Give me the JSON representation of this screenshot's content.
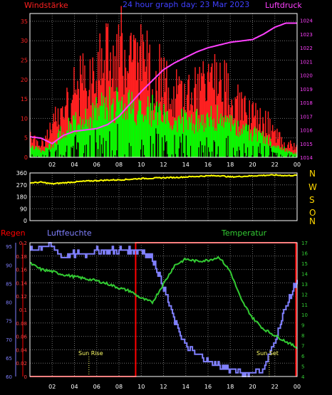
{
  "colors": {
    "background": "#000000",
    "axis": "#ffffff",
    "grid": "#6f6f6f",
    "wind_gust": "#ff2020",
    "wind_avg": "#00ff00",
    "wind_min": "#000000",
    "pressure": "#ff40ff",
    "wind_dir": "#ffff00",
    "humidity": "#8080ff",
    "temperature": "#33cc33",
    "rain": "#ff0000",
    "title": "#4040ff",
    "direction_letters": "#ffd700",
    "sun_labels": "#ffff66"
  },
  "header": {
    "left_label": "Windstärke",
    "center_title": "24 hour graph day: 23 Mar 2023",
    "right_label": "Luftdruck"
  },
  "panel3_labels": {
    "rain": "Regen",
    "humidity": "Luftfeuchte",
    "temperature": "Temperatur",
    "sunrise": "Sun Rise",
    "sunset": "Sun Set"
  },
  "direction_letters": [
    "N",
    "W",
    "S",
    "O",
    "N"
  ],
  "chart_data": [
    {
      "type": "bar",
      "title": "24 hour graph day: 23 Mar 2023",
      "x_ticks": [
        "02",
        "04",
        "06",
        "08",
        "10",
        "12",
        "14",
        "16",
        "18",
        "20",
        "22",
        "00"
      ],
      "xlim": [
        0,
        24
      ],
      "series": [
        {
          "name": "Windstärke",
          "axis": "left",
          "ylim": [
            0,
            37
          ],
          "yticks": [
            "0",
            "5",
            "10",
            "15",
            "20",
            "25",
            "30",
            "35"
          ],
          "x": [
            0,
            1,
            2,
            3,
            4,
            5,
            6,
            7,
            8,
            9,
            10,
            11,
            12,
            13,
            14,
            15,
            16,
            17,
            18,
            19,
            20,
            21,
            22,
            23,
            24
          ],
          "gust": [
            8,
            4,
            9,
            17,
            20,
            24,
            27,
            31,
            34,
            31,
            29,
            26,
            24,
            20,
            20,
            20,
            22,
            24,
            18,
            15,
            12,
            12,
            7,
            4,
            3
          ],
          "avg": [
            3,
            2,
            4,
            9,
            10,
            12,
            14,
            16,
            16,
            16,
            14,
            14,
            12,
            11,
            11,
            11,
            12,
            12,
            10,
            8,
            7,
            6,
            4,
            2,
            1
          ]
        },
        {
          "name": "Luftdruck",
          "axis": "right",
          "ylim": [
            1014,
            1024.5
          ],
          "yticks": [
            "1014",
            "1015",
            "1016",
            "1017",
            "1018",
            "1019",
            "1020",
            "1021",
            "1022",
            "1023",
            "1024"
          ],
          "x": [
            0,
            1,
            2,
            3,
            4,
            5,
            6,
            7,
            8,
            9,
            10,
            11,
            12,
            13,
            14,
            15,
            16,
            17,
            18,
            19,
            20,
            21,
            22,
            23,
            24
          ],
          "values": [
            1015.5,
            1015.4,
            1015.0,
            1015.6,
            1015.9,
            1016.0,
            1016.1,
            1016.4,
            1017.0,
            1017.9,
            1018.8,
            1019.6,
            1020.4,
            1020.9,
            1021.3,
            1021.7,
            1022.0,
            1022.2,
            1022.4,
            1022.5,
            1022.6,
            1023.0,
            1023.5,
            1023.8,
            1023.8
          ]
        }
      ]
    },
    {
      "type": "line",
      "x_ticks": [
        "02",
        "04",
        "06",
        "08",
        "10",
        "12",
        "14",
        "16",
        "18",
        "20",
        "22",
        "00"
      ],
      "xlim": [
        0,
        24
      ],
      "ylim": [
        0,
        360
      ],
      "yticks": [
        "0",
        "90",
        "180",
        "270",
        "360"
      ],
      "series": [
        {
          "name": "Windrichtung",
          "x": [
            0,
            1,
            2,
            3,
            4,
            5,
            6,
            7,
            8,
            9,
            10,
            11,
            12,
            13,
            14,
            15,
            16,
            17,
            18,
            19,
            20,
            21,
            22,
            23,
            24
          ],
          "values": [
            285,
            290,
            278,
            285,
            292,
            298,
            302,
            306,
            308,
            312,
            318,
            320,
            324,
            326,
            330,
            334,
            338,
            340,
            330,
            334,
            338,
            342,
            344,
            340,
            342
          ]
        }
      ]
    },
    {
      "type": "line",
      "x_ticks": [
        "02",
        "04",
        "06",
        "08",
        "10",
        "12",
        "14",
        "16",
        "18",
        "20",
        "22",
        "00"
      ],
      "xlim": [
        0,
        24
      ],
      "series": [
        {
          "name": "Regen",
          "axis": "left",
          "ylim": [
            0,
            0.2
          ],
          "yticks": [
            "0",
            "0.02",
            "0.04",
            "0.06",
            "0.08",
            "0.1",
            "0.12",
            "0.14",
            "0.16",
            "0.18",
            "0.2"
          ],
          "x": [
            0,
            9.5,
            9.5,
            23.9,
            23.9
          ],
          "values": [
            0,
            0,
            0.2,
            0.2,
            0
          ]
        },
        {
          "name": "Luftfeuchte",
          "axis": "left2",
          "ylim": [
            60,
            96
          ],
          "yticks": [
            "60",
            "65",
            "70",
            "75",
            "80",
            "85",
            "90",
            "95"
          ],
          "x": [
            0,
            1,
            2,
            3,
            4,
            5,
            6,
            7,
            8,
            9,
            10,
            11,
            12,
            13,
            14,
            15,
            16,
            17,
            18,
            19,
            20,
            21,
            22,
            23,
            24
          ],
          "values": [
            94,
            95,
            95,
            92,
            93,
            93,
            94,
            94,
            94,
            94,
            94,
            92,
            84,
            75,
            68,
            66,
            64,
            63,
            62,
            61,
            61,
            62,
            70,
            79,
            86
          ]
        },
        {
          "name": "Temperatur",
          "axis": "right",
          "ylim": [
            4,
            17
          ],
          "yticks": [
            "4",
            "5",
            "6",
            "7",
            "8",
            "9",
            "10",
            "11",
            "12",
            "13",
            "14",
            "15",
            "16",
            "17"
          ],
          "x": [
            0,
            1,
            2,
            3,
            4,
            5,
            6,
            7,
            8,
            9,
            10,
            11,
            12,
            13,
            14,
            15,
            16,
            17,
            18,
            19,
            20,
            21,
            22,
            23,
            24
          ],
          "values": [
            15,
            14.4,
            14.2,
            13.9,
            13.7,
            13.5,
            13.3,
            13.0,
            12.6,
            12.3,
            11.6,
            11.2,
            13.0,
            14.8,
            15.4,
            15.2,
            15.3,
            15.6,
            14.2,
            11.4,
            9.7,
            8.6,
            8.0,
            7.4,
            6.8
          ]
        }
      ],
      "annotations": [
        {
          "label": "Sun Rise",
          "x": 5.3
        },
        {
          "label": "Sun Set",
          "x": 21.5
        }
      ]
    }
  ]
}
